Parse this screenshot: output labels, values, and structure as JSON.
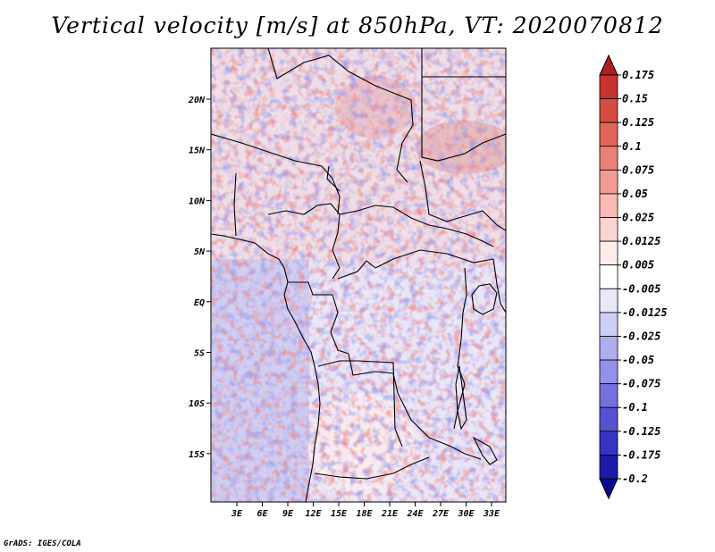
{
  "title": "Vertical velocity [m/s] at 850hPa, VT: 2020070812",
  "credit": "GrADS: IGES/COLA",
  "map": {
    "lat_labels": [
      "20N",
      "15N",
      "10N",
      "5N",
      "EQ",
      "5S",
      "10S",
      "15S"
    ],
    "lon_labels": [
      "3E",
      "6E",
      "9E",
      "12E",
      "15E",
      "18E",
      "21E",
      "24E",
      "27E",
      "30E",
      "33E"
    ]
  },
  "colorbar": {
    "labels": [
      "0.175",
      "0.15",
      "0.125",
      "0.1",
      "0.075",
      "0.05",
      "0.025",
      "0.0125",
      "0.005",
      "-0.005",
      "-0.0125",
      "-0.025",
      "-0.05",
      "-0.075",
      "-0.1",
      "-0.125",
      "-0.175",
      "-0.2"
    ],
    "colors": [
      "#b01c20",
      "#c8332f",
      "#d64c41",
      "#e2655a",
      "#eb8176",
      "#f19d94",
      "#f7bab4",
      "#fbd5d1",
      "#fdeeec",
      "#ffffff",
      "#e8e8fb",
      "#cdcdf6",
      "#afaef0",
      "#9290e8",
      "#7471de",
      "#5552d2",
      "#3533c2",
      "#1a1aa8",
      "#0b0b8c"
    ]
  }
}
